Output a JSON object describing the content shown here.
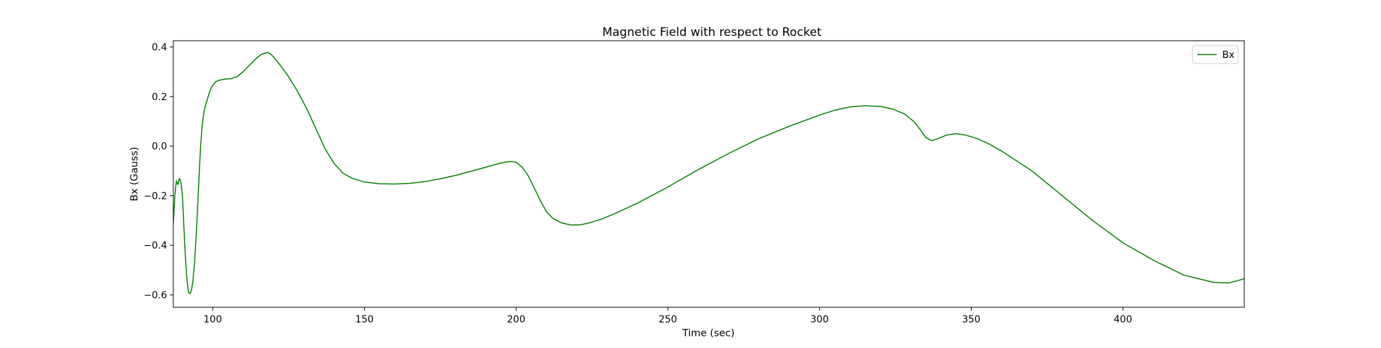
{
  "chart_data": {
    "type": "line",
    "title": "Magnetic Field with respect to Rocket",
    "xlabel": "Time (sec)",
    "ylabel": "Bx (Gauss)",
    "xlim": [
      87,
      440
    ],
    "ylim": [
      -0.65,
      0.425
    ],
    "xticks": [
      100,
      150,
      200,
      250,
      300,
      350,
      400
    ],
    "yticks": [
      0.4,
      0.2,
      0.0,
      -0.2,
      -0.4,
      -0.6
    ],
    "xtick_labels": [
      "100",
      "150",
      "200",
      "250",
      "300",
      "350",
      "400"
    ],
    "ytick_labels": [
      "0.4",
      "0.2",
      "0.0",
      "−0.2",
      "−0.4",
      "−0.6"
    ],
    "grid": false,
    "legend_position": "top-right",
    "colors": {
      "Bx": "#008000"
    },
    "series": [
      {
        "name": "Bx",
        "x": [
          87.0,
          87.5,
          88.0,
          88.5,
          89.0,
          89.5,
          90.0,
          90.5,
          91.0,
          91.5,
          92.0,
          92.5,
          93.0,
          93.5,
          94.0,
          94.5,
          95.0,
          95.5,
          96.0,
          96.5,
          97.0,
          97.5,
          98.0,
          98.5,
          99.0,
          99.5,
          100.0,
          101.0,
          102.0,
          103.0,
          104.0,
          106.0,
          108.0,
          110.0,
          112.0,
          114.0,
          116.0,
          118.0,
          119.0,
          120.0,
          122.0,
          125.0,
          128.0,
          131.0,
          134.0,
          137.0,
          140.0,
          143.0,
          146.0,
          150.0,
          155.0,
          160.0,
          165.0,
          170.0,
          175.0,
          180.0,
          185.0,
          190.0,
          195.0,
          198.0,
          200.0,
          202.0,
          204.0,
          206.0,
          208.0,
          210.0,
          212.0,
          215.0,
          218.0,
          221.0,
          224.0,
          228.0,
          232.0,
          240.0,
          250.0,
          260.0,
          270.0,
          280.0,
          290.0,
          300.0,
          305.0,
          310.0,
          315.0,
          320.0,
          324.0,
          328.0,
          331.0,
          333.0,
          335.0,
          337.0,
          339.0,
          342.0,
          345.0,
          348.0,
          352.0,
          356.0,
          360.0,
          370.0,
          380.0,
          390.0,
          400.0,
          410.0,
          420.0,
          425.0,
          430.0,
          435.0,
          440.0
        ],
        "y": [
          -0.31,
          -0.2,
          -0.14,
          -0.155,
          -0.13,
          -0.145,
          -0.2,
          -0.33,
          -0.45,
          -0.54,
          -0.59,
          -0.595,
          -0.58,
          -0.54,
          -0.47,
          -0.37,
          -0.25,
          -0.12,
          0.0,
          0.08,
          0.13,
          0.16,
          0.18,
          0.2,
          0.22,
          0.235,
          0.245,
          0.26,
          0.265,
          0.268,
          0.27,
          0.272,
          0.28,
          0.3,
          0.325,
          0.35,
          0.37,
          0.378,
          0.372,
          0.36,
          0.33,
          0.28,
          0.22,
          0.15,
          0.07,
          -0.01,
          -0.07,
          -0.11,
          -0.13,
          -0.145,
          -0.152,
          -0.153,
          -0.15,
          -0.143,
          -0.132,
          -0.118,
          -0.102,
          -0.085,
          -0.068,
          -0.062,
          -0.065,
          -0.085,
          -0.12,
          -0.17,
          -0.22,
          -0.265,
          -0.29,
          -0.31,
          -0.318,
          -0.318,
          -0.31,
          -0.295,
          -0.275,
          -0.23,
          -0.165,
          -0.095,
          -0.03,
          0.03,
          0.08,
          0.125,
          0.145,
          0.158,
          0.163,
          0.16,
          0.15,
          0.13,
          0.1,
          0.07,
          0.035,
          0.022,
          0.03,
          0.045,
          0.05,
          0.045,
          0.03,
          0.008,
          -0.02,
          -0.1,
          -0.2,
          -0.3,
          -0.39,
          -0.46,
          -0.52,
          -0.535,
          -0.55,
          -0.552,
          -0.535
        ]
      }
    ]
  }
}
